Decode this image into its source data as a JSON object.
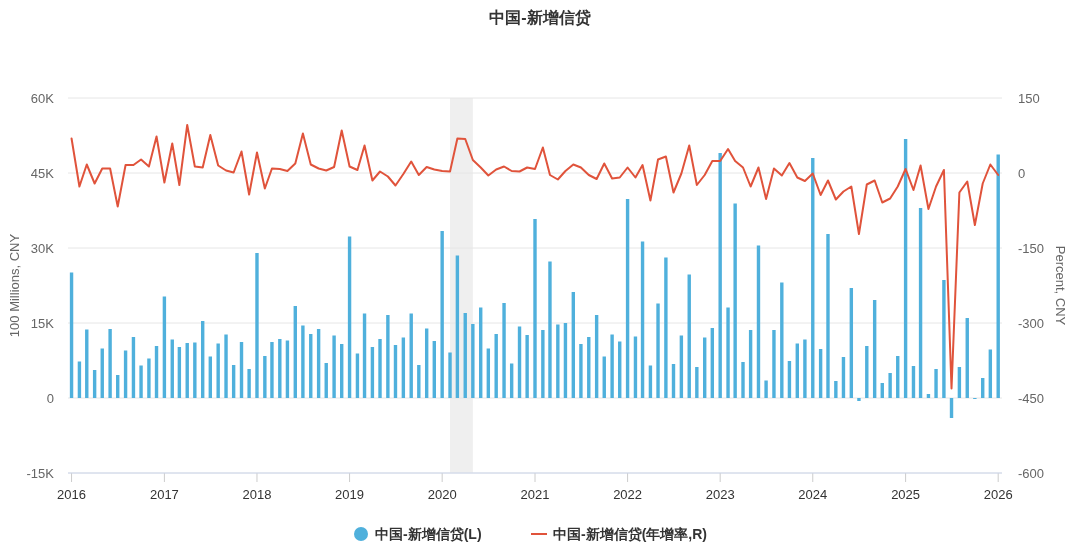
{
  "chart_data": {
    "type": "bar",
    "title": "中国-新增信贷",
    "ylabel": "100 Millions, CNY",
    "y2label": "Percent, CNY",
    "x": [
      "2016-01",
      "2016-02",
      "2016-03",
      "2016-04",
      "2016-05",
      "2016-06",
      "2016-07",
      "2016-08",
      "2016-09",
      "2016-10",
      "2016-11",
      "2016-12",
      "2017-01",
      "2017-02",
      "2017-03",
      "2017-04",
      "2017-05",
      "2017-06",
      "2017-07",
      "2017-08",
      "2017-09",
      "2017-10",
      "2017-11",
      "2017-12",
      "2018-01",
      "2018-02",
      "2018-03",
      "2018-04",
      "2018-05",
      "2018-06",
      "2018-07",
      "2018-08",
      "2018-09",
      "2018-10",
      "2018-11",
      "2018-12",
      "2019-01",
      "2019-02",
      "2019-03",
      "2019-04",
      "2019-05",
      "2019-06",
      "2019-07",
      "2019-08",
      "2019-09",
      "2019-10",
      "2019-11",
      "2019-12",
      "2020-01",
      "2020-02",
      "2020-03",
      "2020-04",
      "2020-05",
      "2020-06",
      "2020-07",
      "2020-08",
      "2020-09",
      "2020-10",
      "2020-11",
      "2020-12",
      "2021-01",
      "2021-02",
      "2021-03",
      "2021-04",
      "2021-05",
      "2021-06",
      "2021-07",
      "2021-08",
      "2021-09",
      "2021-10",
      "2021-11",
      "2021-12",
      "2022-01",
      "2022-02",
      "2022-03",
      "2022-04",
      "2022-05",
      "2022-06",
      "2022-07",
      "2022-08",
      "2022-09",
      "2022-10",
      "2022-11",
      "2022-12",
      "2023-01",
      "2023-02",
      "2023-03",
      "2023-04",
      "2023-05",
      "2023-06",
      "2023-07",
      "2023-08",
      "2023-09",
      "2023-10",
      "2023-11",
      "2023-12",
      "2024-01",
      "2024-02",
      "2024-03",
      "2024-04",
      "2024-05",
      "2024-06",
      "2024-07",
      "2024-08",
      "2024-09",
      "2024-10",
      "2024-11",
      "2024-12",
      "2025-01",
      "2025-02",
      "2025-03",
      "2025-04",
      "2025-05",
      "2025-06",
      "2025-07",
      "2025-08",
      "2025-09",
      "2025-10",
      "2025-11",
      "2025-12",
      "2026-01"
    ],
    "series": [
      {
        "name": "中国-新增信贷(L)",
        "color": "#4fb0dc",
        "values": [
          25100,
          7300,
          13700,
          5600,
          9900,
          13800,
          4600,
          9500,
          12200,
          6500,
          7900,
          10400,
          20300,
          11700,
          10200,
          11000,
          11100,
          15400,
          8300,
          10900,
          12700,
          6600,
          11200,
          5800,
          29000,
          8400,
          11200,
          11800,
          11500,
          18400,
          14500,
          12800,
          13800,
          7000,
          12500,
          10800,
          32300,
          8900,
          16900,
          10200,
          11800,
          16600,
          10600,
          12100,
          16900,
          6600,
          13900,
          11400,
          33400,
          9100,
          28500,
          17000,
          14800,
          18100,
          9900,
          12800,
          19000,
          6900,
          14300,
          12600,
          35800,
          13600,
          27300,
          14700,
          15000,
          21200,
          10800,
          12200,
          16600,
          8300,
          12700,
          11300,
          39800,
          12300,
          31300,
          6500,
          18900,
          28100,
          6800,
          12500,
          24700,
          6200,
          12100,
          14000,
          49000,
          18100,
          38900,
          7200,
          13600,
          30500,
          3500,
          13600,
          23100,
          7400,
          10900,
          11700,
          48000,
          9800,
          32800,
          3400,
          8200,
          22000,
          -600,
          10400,
          19600,
          3000,
          5000,
          8400,
          51800,
          6400,
          38000,
          800,
          5800,
          23600,
          -4000,
          6200,
          16000,
          -200,
          4000,
          9700,
          48700
        ]
      },
      {
        "name": "中国-新增信贷(年增率,R)",
        "type": "line",
        "axis": "y2",
        "color": "#e0533b",
        "values": [
          69,
          -27,
          17,
          -21,
          9,
          9,
          -67,
          16,
          16,
          27,
          13,
          73,
          -19,
          59,
          -24,
          96,
          13,
          11,
          76,
          15,
          5,
          1,
          43,
          -43,
          41,
          -31,
          9,
          8,
          4,
          19,
          79,
          17,
          9,
          5,
          12,
          85,
          13,
          6,
          55,
          -15,
          3,
          -7,
          -25,
          -2,
          23,
          -4,
          12,
          7,
          4,
          3,
          69,
          68,
          26,
          11,
          -5,
          7,
          13,
          4,
          3,
          11,
          8,
          51,
          -4,
          -13,
          4,
          17,
          11,
          -4,
          -12,
          19,
          -11,
          -9,
          11,
          -9,
          16,
          -55,
          27,
          33,
          -39,
          -1,
          55,
          -24,
          -4,
          24,
          24,
          48,
          24,
          11,
          -27,
          11,
          -52,
          9,
          -5,
          20,
          -9,
          -16,
          -1,
          -44,
          -15,
          -53,
          -37,
          -27,
          -122,
          -23,
          -15,
          -59,
          -51,
          -27,
          8,
          -34,
          15,
          -72,
          -27,
          6,
          -431,
          -39,
          -17,
          -104,
          -21,
          17,
          -4
        ]
      }
    ],
    "xlim": [
      "2015-12-18",
      "2026-01-16"
    ],
    "xticks": [
      {
        "value": "2016-01",
        "label": "2016"
      },
      {
        "value": "2017-01",
        "label": "2017"
      },
      {
        "value": "2018-01",
        "label": "2018"
      },
      {
        "value": "2019-01",
        "label": "2019"
      },
      {
        "value": "2020-01",
        "label": "2020"
      },
      {
        "value": "2021-01",
        "label": "2021"
      },
      {
        "value": "2022-01",
        "label": "2022"
      },
      {
        "value": "2023-01",
        "label": "2023"
      },
      {
        "value": "2024-01",
        "label": "2024"
      },
      {
        "value": "2025-01",
        "label": "2025"
      },
      {
        "value": "2026-01",
        "label": "2026"
      }
    ],
    "ylim": [
      -15000,
      60000
    ],
    "yticks": [
      {
        "value": -15000,
        "label": "-15K"
      },
      0,
      {
        "value": 15000,
        "label": "15K"
      },
      {
        "value": 30000,
        "label": "30K"
      },
      {
        "value": 45000,
        "label": "45K"
      },
      {
        "value": 60000,
        "label": "60K"
      }
    ],
    "y2lim": [
      -600,
      150
    ],
    "y2ticks": [
      -600,
      -450,
      -300,
      -150,
      0,
      150
    ],
    "bands": [
      {
        "axis": "x",
        "from": "2020-02",
        "to": "2020-05",
        "color": "#efefef"
      }
    ],
    "grid": "y",
    "legend": "bottom"
  }
}
